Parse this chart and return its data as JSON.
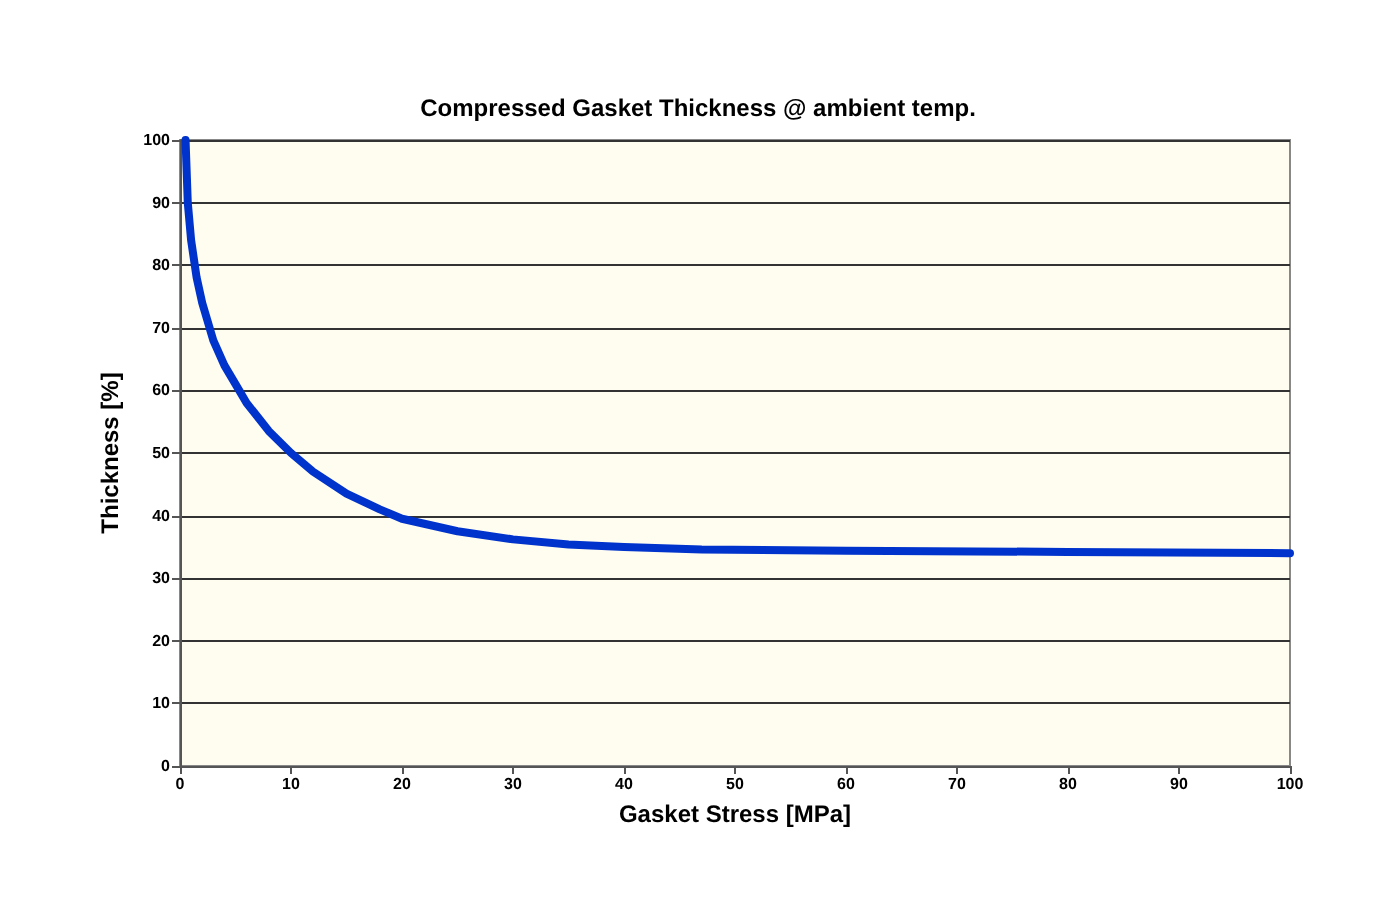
{
  "chart_data": {
    "type": "line",
    "title": "Compressed Gasket Thickness @ ambient temp.",
    "xlabel": "Gasket Stress [MPa]",
    "ylabel": "Thickness [%]",
    "series": [
      {
        "color": "#0033cc",
        "x": [
          0.5,
          0.7,
          1,
          1.5,
          2,
          3,
          4,
          5,
          6,
          8,
          10,
          12,
          15,
          18,
          20,
          25,
          30,
          35,
          40,
          47,
          60,
          80,
          100
        ],
        "values": [
          100,
          90,
          84,
          78,
          74,
          68,
          64,
          61,
          58,
          53.5,
          50,
          47,
          43.5,
          41,
          39.5,
          37.5,
          36.2,
          35.4,
          35,
          34.6,
          34.4,
          34.2,
          34
        ]
      }
    ],
    "xlim": [
      0,
      100
    ],
    "xticks": [
      0,
      10,
      20,
      30,
      40,
      50,
      60,
      70,
      80,
      90,
      100
    ],
    "ylim": [
      0,
      100
    ],
    "yticks": [
      0,
      10,
      20,
      30,
      40,
      50,
      60,
      70,
      80,
      90,
      100
    ],
    "grid": "y",
    "marker": "none",
    "line_style": "solid"
  }
}
